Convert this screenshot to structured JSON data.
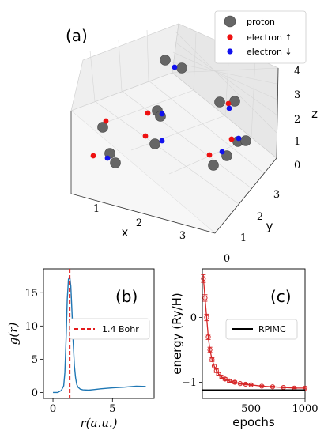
{
  "chart_data": [
    {
      "panel": "(a)",
      "type": "scatter",
      "subtype": "3d",
      "xlabel": "x",
      "ylabel": "y",
      "zlabel": "z",
      "xticks": [
        "1",
        "2",
        "3"
      ],
      "yticks": [
        "0",
        "1",
        "2",
        "3"
      ],
      "zticks": [
        "0",
        "1",
        "2",
        "3",
        "4"
      ],
      "legend": {
        "placement": "top-right",
        "entries": [
          "proton",
          "electron ↑",
          "electron ↓"
        ]
      },
      "colors": {
        "proton": "#666666",
        "electron_up": "#ee1111",
        "electron_down": "#1111ee"
      },
      "series": [
        {
          "name": "proton",
          "count": 15
        },
        {
          "name": "electron ↑",
          "count": 8
        },
        {
          "name": "electron ↓",
          "count": 8
        }
      ]
    },
    {
      "panel": "(b)",
      "type": "line",
      "xlabel": "r(a.u.)",
      "ylabel": "g(r)",
      "xticks": [
        "0",
        "5"
      ],
      "yticks": [
        "0",
        "5",
        "10",
        "15"
      ],
      "xlim": [
        -0.8,
        8.5
      ],
      "ylim": [
        -0.9,
        18.6
      ],
      "grid": false,
      "series": [
        {
          "name": "",
          "color": "#1f77b4",
          "x": [
            0,
            0.4,
            0.7,
            0.9,
            1.0,
            1.1,
            1.2,
            1.3,
            1.4,
            1.5,
            1.6,
            1.7,
            1.8,
            1.9,
            2.0,
            2.1,
            2.3,
            2.5,
            3.0,
            3.5,
            4.0,
            5.0,
            6.0,
            7.0,
            7.8
          ],
          "y": [
            0,
            0,
            0.3,
            1.0,
            3.0,
            8.0,
            14.0,
            17.0,
            17.5,
            16.0,
            12.0,
            7.5,
            4.0,
            2.2,
            1.2,
            0.8,
            0.5,
            0.4,
            0.35,
            0.45,
            0.55,
            0.7,
            0.8,
            0.95,
            0.9
          ]
        }
      ],
      "vline": {
        "x": 1.4,
        "label": "1.4 Bohr",
        "color": "#e31a1c",
        "style": "dashed"
      },
      "legend": {
        "placement": "right"
      }
    },
    {
      "panel": "(c)",
      "type": "line",
      "xlabel": "epochs",
      "ylabel": "energy (Ry/H)",
      "xticks": [
        "500",
        "1000"
      ],
      "yticks": [
        "0",
        "−1"
      ],
      "xlim": [
        50,
        1000
      ],
      "ylim": [
        -1.25,
        0.75
      ],
      "series": [
        {
          "name": "",
          "color": "#d62728",
          "error_bars": true,
          "x": [
            60,
            75,
            90,
            105,
            120,
            140,
            160,
            180,
            200,
            230,
            260,
            300,
            350,
            400,
            450,
            500,
            600,
            700,
            800,
            900,
            1000
          ],
          "y": [
            0.6,
            0.3,
            0.0,
            -0.3,
            -0.5,
            -0.65,
            -0.75,
            -0.82,
            -0.87,
            -0.92,
            -0.95,
            -0.98,
            -1.0,
            -1.02,
            -1.03,
            -1.04,
            -1.06,
            -1.07,
            -1.08,
            -1.09,
            -1.09
          ],
          "err": [
            0.06,
            0.05,
            0.05,
            0.04,
            0.04,
            0.03,
            0.03,
            0.03,
            0.02,
            0.02,
            0.02,
            0.02,
            0.02,
            0.01,
            0.01,
            0.01,
            0.01,
            0.01,
            0.01,
            0.01,
            0.01
          ]
        }
      ],
      "hline": {
        "y": -1.12,
        "label": "RPIMC",
        "color": "#000000"
      },
      "legend": {
        "placement": "center-right"
      }
    }
  ]
}
